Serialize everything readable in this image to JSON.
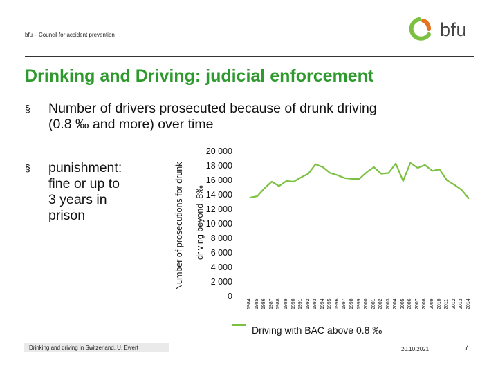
{
  "header": {
    "org": "bfu – Council for accident prevention",
    "logo_text": "bfu"
  },
  "title": "Drinking and Driving: judicial enforcement",
  "bullets": [
    {
      "mark": "§",
      "text_line1": "Number of drivers prosecuted because of drunk driving",
      "text_line2": "(0.8 ‰ and more) over time"
    },
    {
      "mark": "§",
      "lines": [
        "punishment:",
        "fine or up to",
        "3 years in",
        "prison"
      ]
    }
  ],
  "colors": {
    "title": "#2e9a2e",
    "series": "#7cc042",
    "logo_green": "#7cc042",
    "logo_orange": "#e8731d"
  },
  "chart_data": {
    "type": "line",
    "ylabel_line1": "Number of prosecutions for drunk",
    "ylabel_line2": "driving beyond .8‰",
    "yticks": [
      "20 000",
      "18 000",
      "16 000",
      "14 000",
      "12 000",
      "10 000",
      "8 000",
      "6 000",
      "4 000",
      "2 000",
      "0"
    ],
    "ylim": [
      0,
      20000
    ],
    "x": [
      "1984",
      "1985",
      "1986",
      "1987",
      "1988",
      "1989",
      "1990",
      "1991",
      "1992",
      "1993",
      "1994",
      "1995",
      "1996",
      "1997",
      "1998",
      "1999",
      "2000",
      "2001",
      "2002",
      "2003",
      "2004",
      "2005",
      "2006",
      "2007",
      "2008",
      "2009",
      "2010",
      "2011",
      "2012",
      "2013",
      "2014"
    ],
    "series": [
      {
        "name": "Driving with BAC above 0.8 ‰",
        "values": [
          13700,
          13900,
          15000,
          15900,
          15300,
          16000,
          15900,
          16500,
          17000,
          18300,
          17900,
          17100,
          16800,
          16400,
          16300,
          16300,
          17200,
          17900,
          17000,
          17100,
          18400,
          16000,
          18500,
          17800,
          18200,
          17400,
          17600,
          16100,
          15500,
          14800,
          13600
        ]
      }
    ],
    "legend": "Driving with BAC above 0.8 ‰"
  },
  "footer": {
    "left": "Drinking and driving in Switzerland, U. Ewert",
    "date": "20.10.2021",
    "page": "7"
  }
}
